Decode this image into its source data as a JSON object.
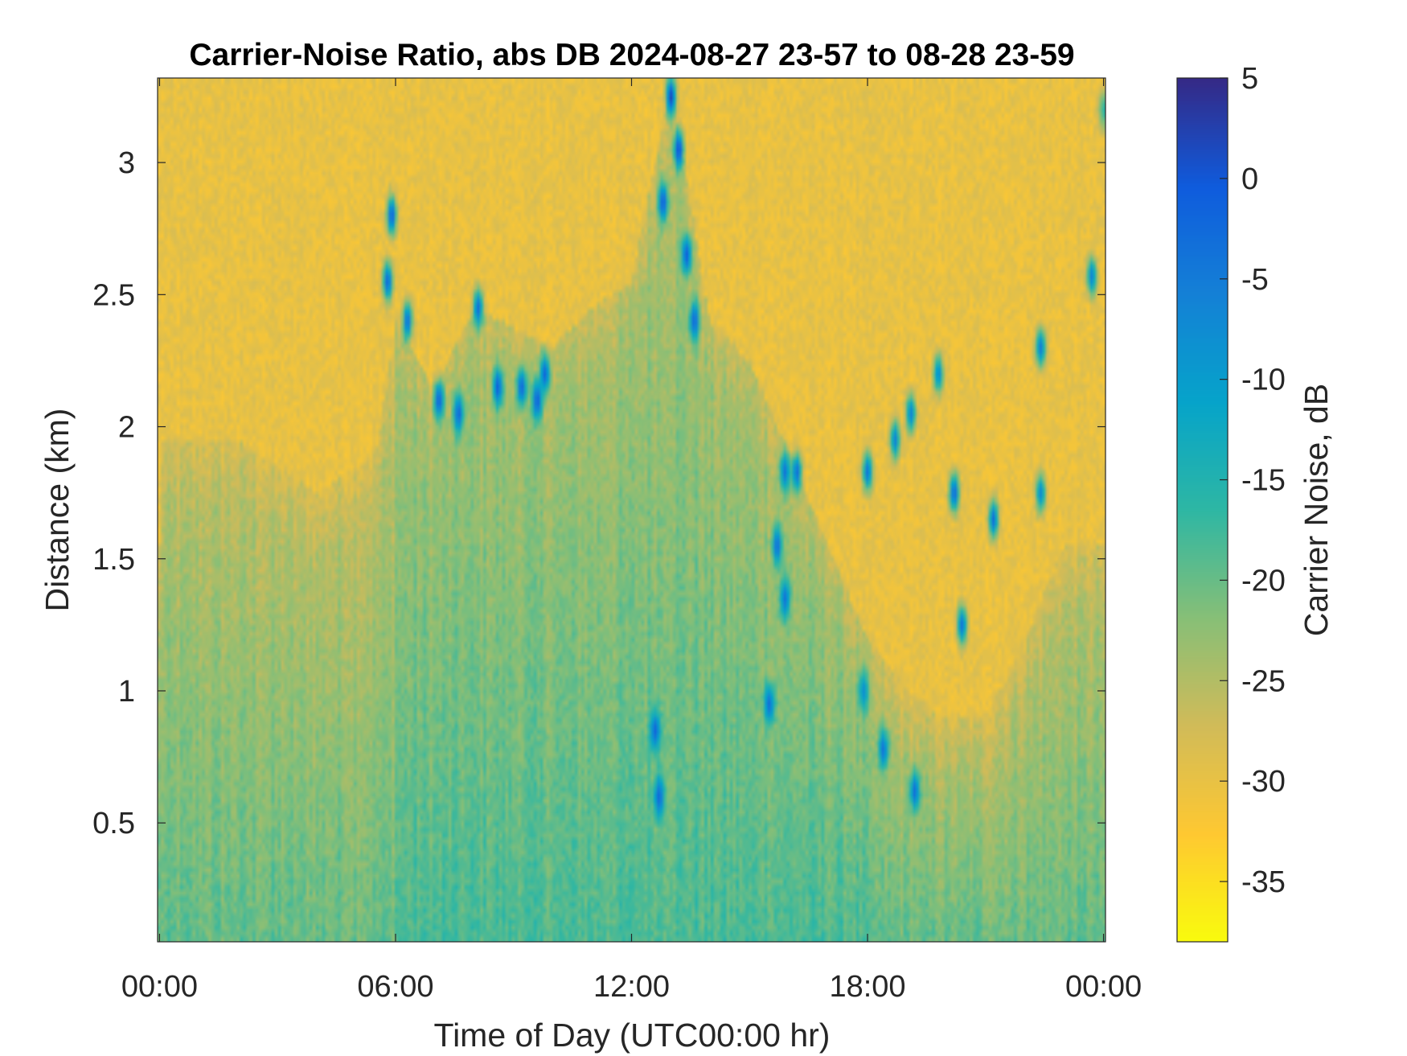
{
  "chart_data": {
    "type": "heatmap",
    "title": "Carrier-Noise Ratio, abs DB 2024-08-27 23-57 to 08-28 23-59",
    "xlabel": "Time of Day (UTC00:00 hr)",
    "ylabel": "Distance (km)",
    "colorbar_label": "Carrier Noise, dB",
    "xlim_hours": [
      -0.05,
      24.05
    ],
    "ylim_km": [
      0.05,
      3.32
    ],
    "clim_db": [
      -38,
      5
    ],
    "x_ticks": [
      {
        "value": 0,
        "label": "00:00"
      },
      {
        "value": 6,
        "label": "06:00"
      },
      {
        "value": 12,
        "label": "12:00"
      },
      {
        "value": 18,
        "label": "18:00"
      },
      {
        "value": 24,
        "label": "00:00"
      }
    ],
    "y_ticks": [
      {
        "value": 0.5,
        "label": "0.5"
      },
      {
        "value": 1,
        "label": "1"
      },
      {
        "value": 1.5,
        "label": "1.5"
      },
      {
        "value": 2,
        "label": "2"
      },
      {
        "value": 2.5,
        "label": "2.5"
      },
      {
        "value": 3,
        "label": "3"
      }
    ],
    "colorbar_ticks": [
      {
        "value": 5,
        "label": "5"
      },
      {
        "value": 0,
        "label": "0"
      },
      {
        "value": -5,
        "label": "-5"
      },
      {
        "value": -10,
        "label": "-10"
      },
      {
        "value": -15,
        "label": "-15"
      },
      {
        "value": -20,
        "label": "-20"
      },
      {
        "value": -25,
        "label": "-25"
      },
      {
        "value": -30,
        "label": "-30"
      },
      {
        "value": -35,
        "label": "-35"
      }
    ],
    "colormap": [
      "#352a87",
      "#0f5cdd",
      "#1481d6",
      "#06a4ca",
      "#2eb7a4",
      "#87bf77",
      "#d1bb59",
      "#fec832",
      "#f9fb0e"
    ],
    "background_db": -30,
    "boundary_layer_height_km": [
      [
        0,
        1.95
      ],
      [
        2,
        1.95
      ],
      [
        4,
        1.75
      ],
      [
        5.5,
        1.9
      ],
      [
        6,
        2.4
      ],
      [
        7,
        2.15
      ],
      [
        8,
        2.45
      ],
      [
        10,
        2.3
      ],
      [
        11,
        2.45
      ],
      [
        12,
        2.55
      ],
      [
        13,
        3.3
      ],
      [
        14,
        2.4
      ],
      [
        15,
        2.25
      ],
      [
        16,
        1.9
      ],
      [
        17,
        1.55
      ],
      [
        18,
        1.2
      ],
      [
        19,
        1.0
      ],
      [
        20,
        0.9
      ],
      [
        21,
        0.9
      ],
      [
        22,
        1.2
      ],
      [
        23,
        1.55
      ],
      [
        24,
        1.55
      ]
    ],
    "cloud_echoes": [
      {
        "t": 5.9,
        "d": 2.8,
        "v": -1
      },
      {
        "t": 5.8,
        "d": 2.55,
        "v": -2
      },
      {
        "t": 6.3,
        "d": 2.4,
        "v": -3
      },
      {
        "t": 7.1,
        "d": 2.1,
        "v": -1
      },
      {
        "t": 7.6,
        "d": 2.05,
        "v": -2
      },
      {
        "t": 8.1,
        "d": 2.45,
        "v": -3
      },
      {
        "t": 8.6,
        "d": 2.15,
        "v": -1
      },
      {
        "t": 9.2,
        "d": 2.15,
        "v": -2
      },
      {
        "t": 9.6,
        "d": 2.1,
        "v": -1
      },
      {
        "t": 9.8,
        "d": 2.2,
        "v": -2
      },
      {
        "t": 13.0,
        "d": 3.25,
        "v": 2
      },
      {
        "t": 13.2,
        "d": 3.05,
        "v": 1
      },
      {
        "t": 12.8,
        "d": 2.85,
        "v": -1
      },
      {
        "t": 13.4,
        "d": 2.65,
        "v": -1
      },
      {
        "t": 13.6,
        "d": 2.4,
        "v": -2
      },
      {
        "t": 15.9,
        "d": 1.83,
        "v": -4
      },
      {
        "t": 16.2,
        "d": 1.83,
        "v": -3
      },
      {
        "t": 15.7,
        "d": 1.55,
        "v": -3
      },
      {
        "t": 15.9,
        "d": 1.35,
        "v": -4
      },
      {
        "t": 15.5,
        "d": 0.95,
        "v": -3
      },
      {
        "t": 12.6,
        "d": 0.85,
        "v": -2
      },
      {
        "t": 12.7,
        "d": 0.6,
        "v": -2
      },
      {
        "t": 18.0,
        "d": 1.83,
        "v": -4
      },
      {
        "t": 18.7,
        "d": 1.95,
        "v": -6
      },
      {
        "t": 19.1,
        "d": 2.05,
        "v": -6
      },
      {
        "t": 19.8,
        "d": 2.2,
        "v": -7
      },
      {
        "t": 18.4,
        "d": 0.78,
        "v": -4
      },
      {
        "t": 19.2,
        "d": 0.62,
        "v": -3
      },
      {
        "t": 20.4,
        "d": 1.25,
        "v": -4
      },
      {
        "t": 20.2,
        "d": 1.75,
        "v": -2
      },
      {
        "t": 21.2,
        "d": 1.65,
        "v": -3
      },
      {
        "t": 22.4,
        "d": 2.3,
        "v": -5
      },
      {
        "t": 22.4,
        "d": 1.75,
        "v": -7
      },
      {
        "t": 23.7,
        "d": 2.57,
        "v": -6
      },
      {
        "t": 24.0,
        "d": 3.2,
        "v": -16
      },
      {
        "t": 17.9,
        "d": 1.0,
        "v": -8
      }
    ]
  }
}
